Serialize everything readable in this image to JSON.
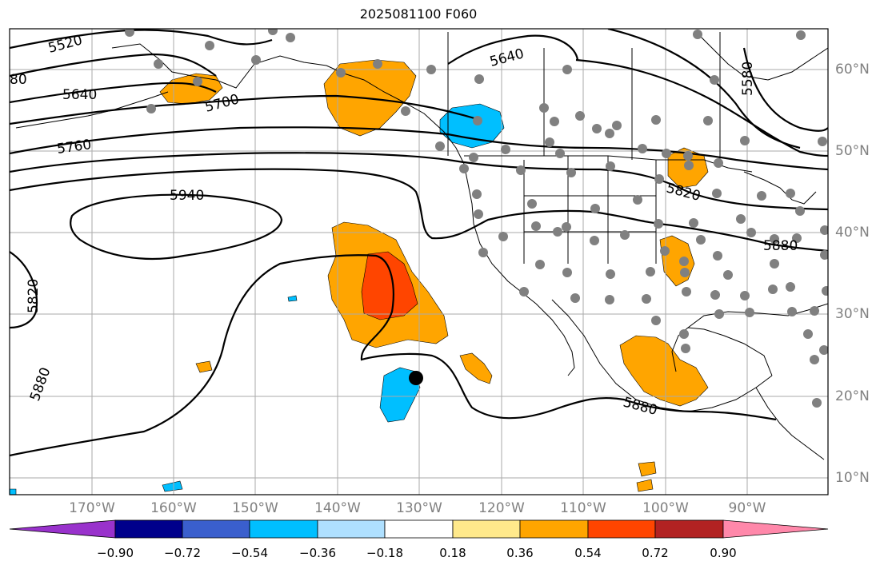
{
  "title": "2025081100 F060",
  "lat_labels": [
    "60°N",
    "50°N",
    "40°N",
    "30°N",
    "20°N",
    "10°N"
  ],
  "lon_labels": [
    "170°W",
    "160°W",
    "150°W",
    "140°W",
    "130°W",
    "120°W",
    "110°W",
    "100°W",
    "90°W"
  ],
  "contour_labels": [
    "5520",
    "5640",
    "5700",
    "5760",
    "5940",
    "5820",
    "5880",
    "5640",
    "5580",
    "5820",
    "5880",
    "5880",
    "80"
  ],
  "colorbar": {
    "colors": [
      "#9932cc",
      "#00008b",
      "#3a5fcd",
      "#00bfff",
      "#afe0ff",
      "#ffffff",
      "#ffe98b",
      "#ffa500",
      "#ff4500",
      "#b22222",
      "#ff88aa"
    ],
    "ticks": [
      "−0.90",
      "−0.72",
      "−0.54",
      "−0.36",
      "−0.18",
      "0.18",
      "0.36",
      "0.54",
      "0.72",
      "0.90"
    ]
  },
  "field_colors": {
    "positive_mid": "#ffa500",
    "positive_high": "#ff4500",
    "negative_mid": "#00bfff",
    "station_dot": "#808080",
    "gridline": "#aaaaaa"
  }
}
